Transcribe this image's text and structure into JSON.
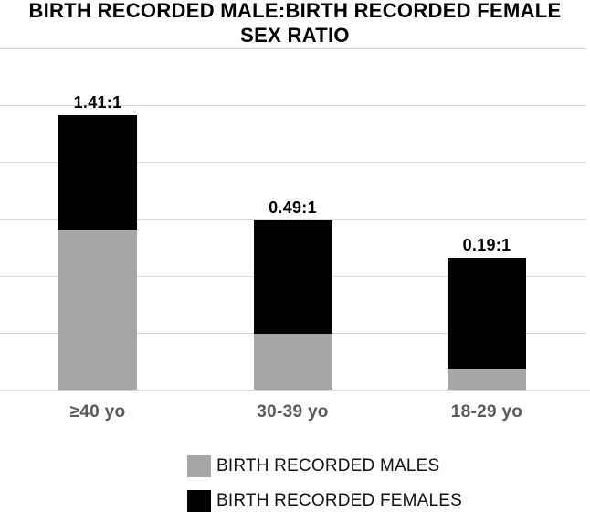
{
  "chart_data": {
    "type": "bar",
    "subtype": "stacked",
    "title": "BIRTH RECORDED MALE:BIRTH RECORDED FEMALE SEX RATIO",
    "title_lines": [
      "BIRTH RECORDED MALE:BIRTH RECORDED FEMALE",
      "SEX RATIO"
    ],
    "categories": [
      "≥40 yo",
      "30-39 yo",
      "18-29 yo"
    ],
    "series": [
      {
        "name": "BIRTH RECORDED MALES",
        "color": "#a6a6a6",
        "values": [
          2.82,
          0.98,
          0.37
        ]
      },
      {
        "name": "BIRTH RECORDED FEMALES",
        "color": "#000000",
        "values": [
          2.0,
          2.0,
          1.95
        ]
      }
    ],
    "bar_labels": [
      "1.41:1",
      "0.49:1",
      "0.19:1"
    ],
    "xlabel": "",
    "ylabel": "",
    "ylim": [
      0,
      6
    ],
    "y_tick_labels_visible": false,
    "gridline_count": 7,
    "grid": true,
    "legend_position": "bottom",
    "colors": {
      "grid": "#d9d9d9",
      "axis": "#d9d9d9",
      "title": "#000000",
      "bar_label": "#000000",
      "category_label": "#595959",
      "legend_text": "#111111"
    }
  }
}
